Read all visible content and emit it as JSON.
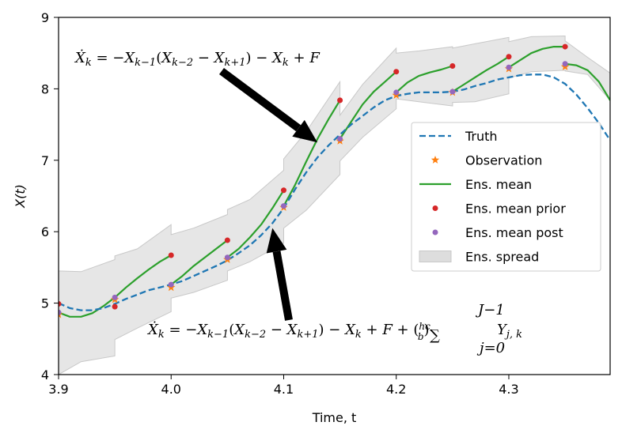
{
  "chart_data": {
    "type": "line",
    "xlabel": "Time, t",
    "ylabel": "X(t)",
    "xlim": [
      3.9,
      4.39
    ],
    "ylim": [
      4,
      9
    ],
    "xticks": [
      3.9,
      4.0,
      4.1,
      4.2,
      4.3
    ],
    "xtick_labels": [
      "3.9",
      "4.0",
      "4.1",
      "4.2",
      "4.3"
    ],
    "yticks": [
      4,
      5,
      6,
      7,
      8,
      9
    ],
    "ytick_labels": [
      "4",
      "5",
      "6",
      "7",
      "8",
      "9"
    ],
    "grid": false,
    "legend_position": "center-right",
    "series": [
      {
        "name": "Truth",
        "style": "dashed-line",
        "color": "#1f77b4",
        "x": [
          3.9,
          3.91,
          3.92,
          3.93,
          3.94,
          3.95,
          3.96,
          3.97,
          3.98,
          3.99,
          4.0,
          4.01,
          4.02,
          4.03,
          4.04,
          4.05,
          4.06,
          4.07,
          4.08,
          4.09,
          4.1,
          4.11,
          4.12,
          4.13,
          4.14,
          4.15,
          4.16,
          4.17,
          4.18,
          4.19,
          4.2,
          4.21,
          4.22,
          4.23,
          4.24,
          4.25,
          4.26,
          4.27,
          4.28,
          4.29,
          4.3,
          4.31,
          4.32,
          4.33,
          4.34,
          4.35,
          4.36,
          4.37,
          4.38,
          4.39
        ],
        "y": [
          5.0,
          4.93,
          4.9,
          4.9,
          4.93,
          4.99,
          5.06,
          5.12,
          5.18,
          5.22,
          5.26,
          5.31,
          5.38,
          5.45,
          5.52,
          5.6,
          5.7,
          5.81,
          5.95,
          6.12,
          6.33,
          6.59,
          6.83,
          7.04,
          7.21,
          7.36,
          7.5,
          7.62,
          7.74,
          7.84,
          7.9,
          7.93,
          7.95,
          7.95,
          7.95,
          7.96,
          7.99,
          8.04,
          8.08,
          8.13,
          8.16,
          8.19,
          8.2,
          8.2,
          8.16,
          8.07,
          7.92,
          7.73,
          7.52,
          7.28
        ]
      },
      {
        "name": "Observation",
        "style": "star-markers",
        "color": "#ff7f0e",
        "x": [
          3.9,
          3.95,
          4.0,
          4.05,
          4.1,
          4.15,
          4.2,
          4.25,
          4.3,
          4.35
        ],
        "y": [
          4.84,
          5.05,
          5.22,
          5.61,
          6.34,
          7.27,
          7.91,
          7.95,
          8.28,
          8.31
        ]
      },
      {
        "name": "Ens. mean",
        "style": "solid-line",
        "color": "#2ca02c",
        "segments": [
          {
            "x": [
              3.9,
              3.91,
              3.92,
              3.93,
              3.94,
              3.95
            ],
            "y": [
              4.87,
              4.81,
              4.81,
              4.86,
              4.96,
              5.08
            ]
          },
          {
            "x": [
              3.95,
              3.96,
              3.97,
              3.98,
              3.99,
              4.0
            ],
            "y": [
              5.08,
              5.22,
              5.35,
              5.47,
              5.58,
              5.67
            ]
          },
          {
            "x": [
              4.0,
              4.01,
              4.02,
              4.03,
              4.04,
              4.05
            ],
            "y": [
              5.26,
              5.38,
              5.52,
              5.64,
              5.76,
              5.88
            ]
          },
          {
            "x": [
              4.05,
              4.06,
              4.07,
              4.08,
              4.09,
              4.1
            ],
            "y": [
              5.64,
              5.76,
              5.92,
              6.1,
              6.33,
              6.58
            ]
          },
          {
            "x": [
              4.1,
              4.11,
              4.12,
              4.13,
              4.14,
              4.15
            ],
            "y": [
              6.36,
              6.65,
              6.98,
              7.3,
              7.58,
              7.84
            ]
          },
          {
            "x": [
              4.15,
              4.16,
              4.17,
              4.18,
              4.19,
              4.2
            ],
            "y": [
              7.3,
              7.54,
              7.78,
              7.96,
              8.1,
              8.24
            ]
          },
          {
            "x": [
              4.2,
              4.21,
              4.22,
              4.23,
              4.24,
              4.25
            ],
            "y": [
              7.95,
              8.09,
              8.18,
              8.23,
              8.27,
              8.32
            ]
          },
          {
            "x": [
              4.25,
              4.26,
              4.27,
              4.28,
              4.29,
              4.3
            ],
            "y": [
              7.96,
              8.06,
              8.16,
              8.26,
              8.35,
              8.45
            ]
          },
          {
            "x": [
              4.3,
              4.31,
              4.32,
              4.33,
              4.34,
              4.35
            ],
            "y": [
              8.3,
              8.4,
              8.5,
              8.56,
              8.59,
              8.59
            ]
          },
          {
            "x": [
              4.35,
              4.36,
              4.37,
              4.38,
              4.39
            ],
            "y": [
              8.35,
              8.33,
              8.26,
              8.1,
              7.84
            ]
          }
        ]
      },
      {
        "name": "Ens. mean prior",
        "style": "dot-markers",
        "color": "#d62728",
        "x": [
          3.9,
          3.95,
          4.0,
          4.05,
          4.1,
          4.15,
          4.2,
          4.25,
          4.3,
          4.35
        ],
        "y": [
          4.99,
          4.95,
          5.67,
          5.88,
          6.58,
          7.84,
          8.24,
          8.32,
          8.45,
          8.59
        ]
      },
      {
        "name": "Ens. mean post",
        "style": "dot-markers",
        "color": "#9467bd",
        "x": [
          3.9,
          3.95,
          4.0,
          4.05,
          4.1,
          4.15,
          4.2,
          4.25,
          4.3,
          4.35
        ],
        "y": [
          4.87,
          5.08,
          5.26,
          5.64,
          6.36,
          7.3,
          7.95,
          7.96,
          8.3,
          8.35
        ]
      },
      {
        "name": "Ens. spread",
        "style": "band",
        "color": "#dddddd",
        "x": [
          3.9,
          3.92,
          3.95,
          3.95,
          3.97,
          4.0,
          4.0,
          4.02,
          4.05,
          4.05,
          4.07,
          4.1,
          4.1,
          4.12,
          4.15,
          4.15,
          4.17,
          4.2,
          4.2,
          4.22,
          4.25,
          4.25,
          4.27,
          4.3,
          4.3,
          4.32,
          4.35,
          4.35,
          4.37,
          4.39
        ],
        "lower": [
          4.0,
          4.18,
          4.26,
          4.49,
          4.65,
          4.88,
          5.07,
          5.15,
          5.32,
          5.45,
          5.58,
          5.84,
          6.05,
          6.3,
          6.8,
          6.99,
          7.32,
          7.72,
          7.86,
          7.82,
          7.76,
          7.81,
          7.82,
          7.93,
          8.15,
          8.24,
          8.26,
          8.25,
          8.2,
          7.84
        ],
        "upper": [
          5.45,
          5.44,
          5.61,
          5.66,
          5.76,
          6.1,
          5.96,
          6.05,
          6.24,
          6.31,
          6.45,
          6.86,
          7.02,
          7.4,
          8.1,
          7.63,
          8.06,
          8.57,
          8.5,
          8.53,
          8.59,
          8.57,
          8.63,
          8.72,
          8.66,
          8.73,
          8.74,
          8.67,
          8.44,
          8.22
        ]
      }
    ],
    "annotations": [
      {
        "text": "Ẋ_k = −X_{k−1}(X_{k−2} − X_{k+1}) − X_k + F",
        "target": [
          4.13,
          7.25
        ]
      },
      {
        "text": "Ẋ_k = −X_{k−1}(X_{k−2} − X_{k+1}) − X_k + F + (hc/b) Σ_{j=0}^{J−1} Y_{j,k}",
        "target": [
          4.09,
          6.05
        ]
      }
    ]
  }
}
